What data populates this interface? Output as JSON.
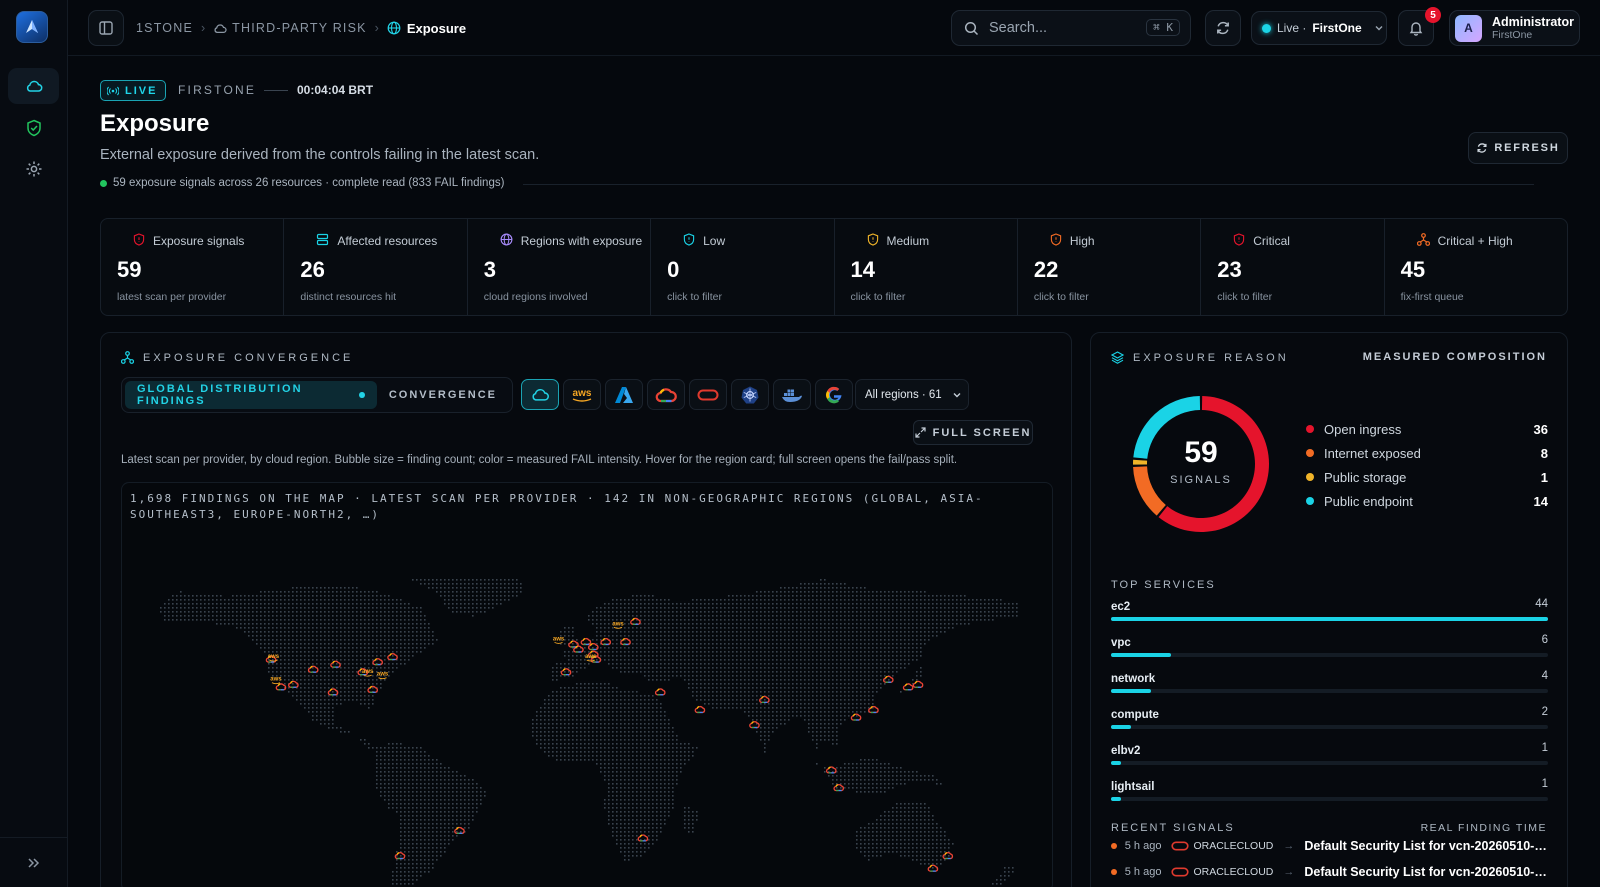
{
  "breadcrumb": {
    "org": "1STONE",
    "section": "THIRD-PARTY RISK",
    "current": "Exposure"
  },
  "search": {
    "placeholder": "Search...",
    "shortcut": "⌘ K"
  },
  "live_selector": {
    "prefix": "Live ·",
    "org": "FirstOne"
  },
  "notifications": {
    "count": "5"
  },
  "user": {
    "initial": "A",
    "name": "Administrator",
    "org": "FirstOne"
  },
  "header": {
    "live_label": "LIVE",
    "org": "FIRSTONE",
    "time": "00:04:04 BRT",
    "title": "Exposure",
    "subtitle": "External exposure derived from the controls failing in the latest scan.",
    "status": "59 exposure signals across 26 resources · complete read (833 FAIL findings)",
    "refresh_label": "REFRESH"
  },
  "stats": [
    {
      "label": "Exposure signals",
      "value": "59",
      "sub": "latest scan per provider",
      "icon": "shield-alert-icon",
      "color": "#e5142c"
    },
    {
      "label": "Affected resources",
      "value": "26",
      "sub": "distinct resources hit",
      "icon": "server-icon",
      "color": "#1ad3e6"
    },
    {
      "label": "Regions with exposure",
      "value": "3",
      "sub": "cloud regions involved",
      "icon": "globe-icon",
      "color": "#a78bfa"
    },
    {
      "label": "Low",
      "value": "0",
      "sub": "click to filter",
      "icon": "shield-icon",
      "color": "#1ad3e6"
    },
    {
      "label": "Medium",
      "value": "14",
      "sub": "click to filter",
      "icon": "shield-icon",
      "color": "#f0b429"
    },
    {
      "label": "High",
      "value": "22",
      "sub": "click to filter",
      "icon": "shield-icon",
      "color": "#f26b24"
    },
    {
      "label": "Critical",
      "value": "23",
      "sub": "click to filter",
      "icon": "shield-icon",
      "color": "#e5142c"
    },
    {
      "label": "Critical + High",
      "value": "45",
      "sub": "fix-first queue",
      "icon": "network-icon",
      "color": "#f26b24"
    }
  ],
  "convergence": {
    "title": "EXPOSURE CONVERGENCE",
    "tab_global": "GLOBAL DISTRIBUTION FINDINGS",
    "tab_convergence": "CONVERGENCE",
    "providers": [
      "all-clouds",
      "aws",
      "azure",
      "gcp",
      "oraclecloud",
      "kubernetes",
      "docker",
      "google"
    ],
    "aws_text": "aws",
    "region_filter": "All regions · 61",
    "fullscreen_label": "FULL SCREEN",
    "description": "Latest scan per provider, by cloud region. Bubble size = finding count; color = measured FAIL intensity. Hover for the region card; full screen opens the fail/pass split.",
    "map_caption": "1,698 FINDINGS ON THE MAP · LATEST SCAN PER PROVIDER · 142 IN NON-GEOGRAPHIC REGIONS (GLOBAL, ASIA-SOUTHEAST3, EUROPE-NORTH2, …)"
  },
  "reason": {
    "title": "EXPOSURE REASON",
    "composition_label": "MEASURED COMPOSITION",
    "total": "59",
    "total_label": "SIGNALS",
    "items": [
      {
        "label": "Open ingress",
        "value": 36,
        "color": "#e5142c"
      },
      {
        "label": "Internet exposed",
        "value": 8,
        "color": "#f26b24"
      },
      {
        "label": "Public storage",
        "value": 1,
        "color": "#f0b429"
      },
      {
        "label": "Public endpoint",
        "value": 14,
        "color": "#1ad3e6"
      }
    ]
  },
  "top_services": {
    "title": "TOP SERVICES",
    "items": [
      {
        "name": "ec2",
        "count": 44
      },
      {
        "name": "vpc",
        "count": 6
      },
      {
        "name": "network",
        "count": 4
      },
      {
        "name": "compute",
        "count": 2
      },
      {
        "name": "elbv2",
        "count": 1
      },
      {
        "name": "lightsail",
        "count": 1
      }
    ]
  },
  "recent_signals": {
    "title": "RECENT SIGNALS",
    "time_label": "REAL FINDING TIME",
    "items": [
      {
        "age": "5 h ago",
        "provider": "ORACLECLOUD",
        "title": "Default Security List for vcn-20260510-23..."
      },
      {
        "age": "5 h ago",
        "provider": "ORACLECLOUD",
        "title": "Default Security List for vcn-20260510-23..."
      }
    ]
  },
  "map_markers": [
    {
      "lon": -122,
      "lat": 45,
      "p": "gcp"
    },
    {
      "lon": -121,
      "lat": 46,
      "p": "aws"
    },
    {
      "lon": -120,
      "lat": 37,
      "p": "aws"
    },
    {
      "lon": -118,
      "lat": 34,
      "p": "gcp"
    },
    {
      "lon": -113,
      "lat": 35,
      "p": "gcp"
    },
    {
      "lon": -105,
      "lat": 41,
      "p": "gcp"
    },
    {
      "lon": -96,
      "lat": 43,
      "p": "gcp"
    },
    {
      "lon": -97,
      "lat": 32,
      "p": "gcp"
    },
    {
      "lon": -85,
      "lat": 40,
      "p": "gcp"
    },
    {
      "lon": -83,
      "lat": 40,
      "p": "aws"
    },
    {
      "lon": -79,
      "lat": 44,
      "p": "gcp"
    },
    {
      "lon": -77,
      "lat": 39,
      "p": "aws"
    },
    {
      "lon": -81,
      "lat": 33,
      "p": "gcp"
    },
    {
      "lon": -73,
      "lat": 46,
      "p": "gcp"
    },
    {
      "lon": -46,
      "lat": -23,
      "p": "gcp"
    },
    {
      "lon": -70,
      "lat": -33,
      "p": "gcp"
    },
    {
      "lon": -6,
      "lat": 53,
      "p": "aws"
    },
    {
      "lon": 0,
      "lat": 51,
      "p": "gcp"
    },
    {
      "lon": 2,
      "lat": 49,
      "p": "gcp"
    },
    {
      "lon": 5,
      "lat": 52,
      "p": "gcp"
    },
    {
      "lon": 8,
      "lat": 50,
      "p": "gcp"
    },
    {
      "lon": 8,
      "lat": 47,
      "p": "gcp"
    },
    {
      "lon": 9,
      "lat": 45,
      "p": "gcp"
    },
    {
      "lon": 7,
      "lat": 46,
      "p": "aws"
    },
    {
      "lon": 13,
      "lat": 52,
      "p": "gcp"
    },
    {
      "lon": 21,
      "lat": 52,
      "p": "gcp"
    },
    {
      "lon": 18,
      "lat": 59,
      "p": "aws"
    },
    {
      "lon": 25,
      "lat": 60,
      "p": "gcp"
    },
    {
      "lon": -3,
      "lat": 40,
      "p": "gcp"
    },
    {
      "lon": 35,
      "lat": 32,
      "p": "gcp"
    },
    {
      "lon": 51,
      "lat": 25,
      "p": "gcp"
    },
    {
      "lon": 73,
      "lat": 19,
      "p": "gcp"
    },
    {
      "lon": 77,
      "lat": 29,
      "p": "gcp"
    },
    {
      "lon": 28,
      "lat": -26,
      "p": "gcp"
    },
    {
      "lon": 104,
      "lat": 1,
      "p": "gcp"
    },
    {
      "lon": 107,
      "lat": -6,
      "p": "gcp"
    },
    {
      "lon": 114,
      "lat": 22,
      "p": "gcp"
    },
    {
      "lon": 121,
      "lat": 25,
      "p": "gcp"
    },
    {
      "lon": 127,
      "lat": 37,
      "p": "gcp"
    },
    {
      "lon": 139,
      "lat": 35,
      "p": "gcp"
    },
    {
      "lon": 135,
      "lat": 34,
      "p": "gcp"
    },
    {
      "lon": 151,
      "lat": -33,
      "p": "gcp"
    },
    {
      "lon": 145,
      "lat": -38,
      "p": "gcp"
    }
  ]
}
